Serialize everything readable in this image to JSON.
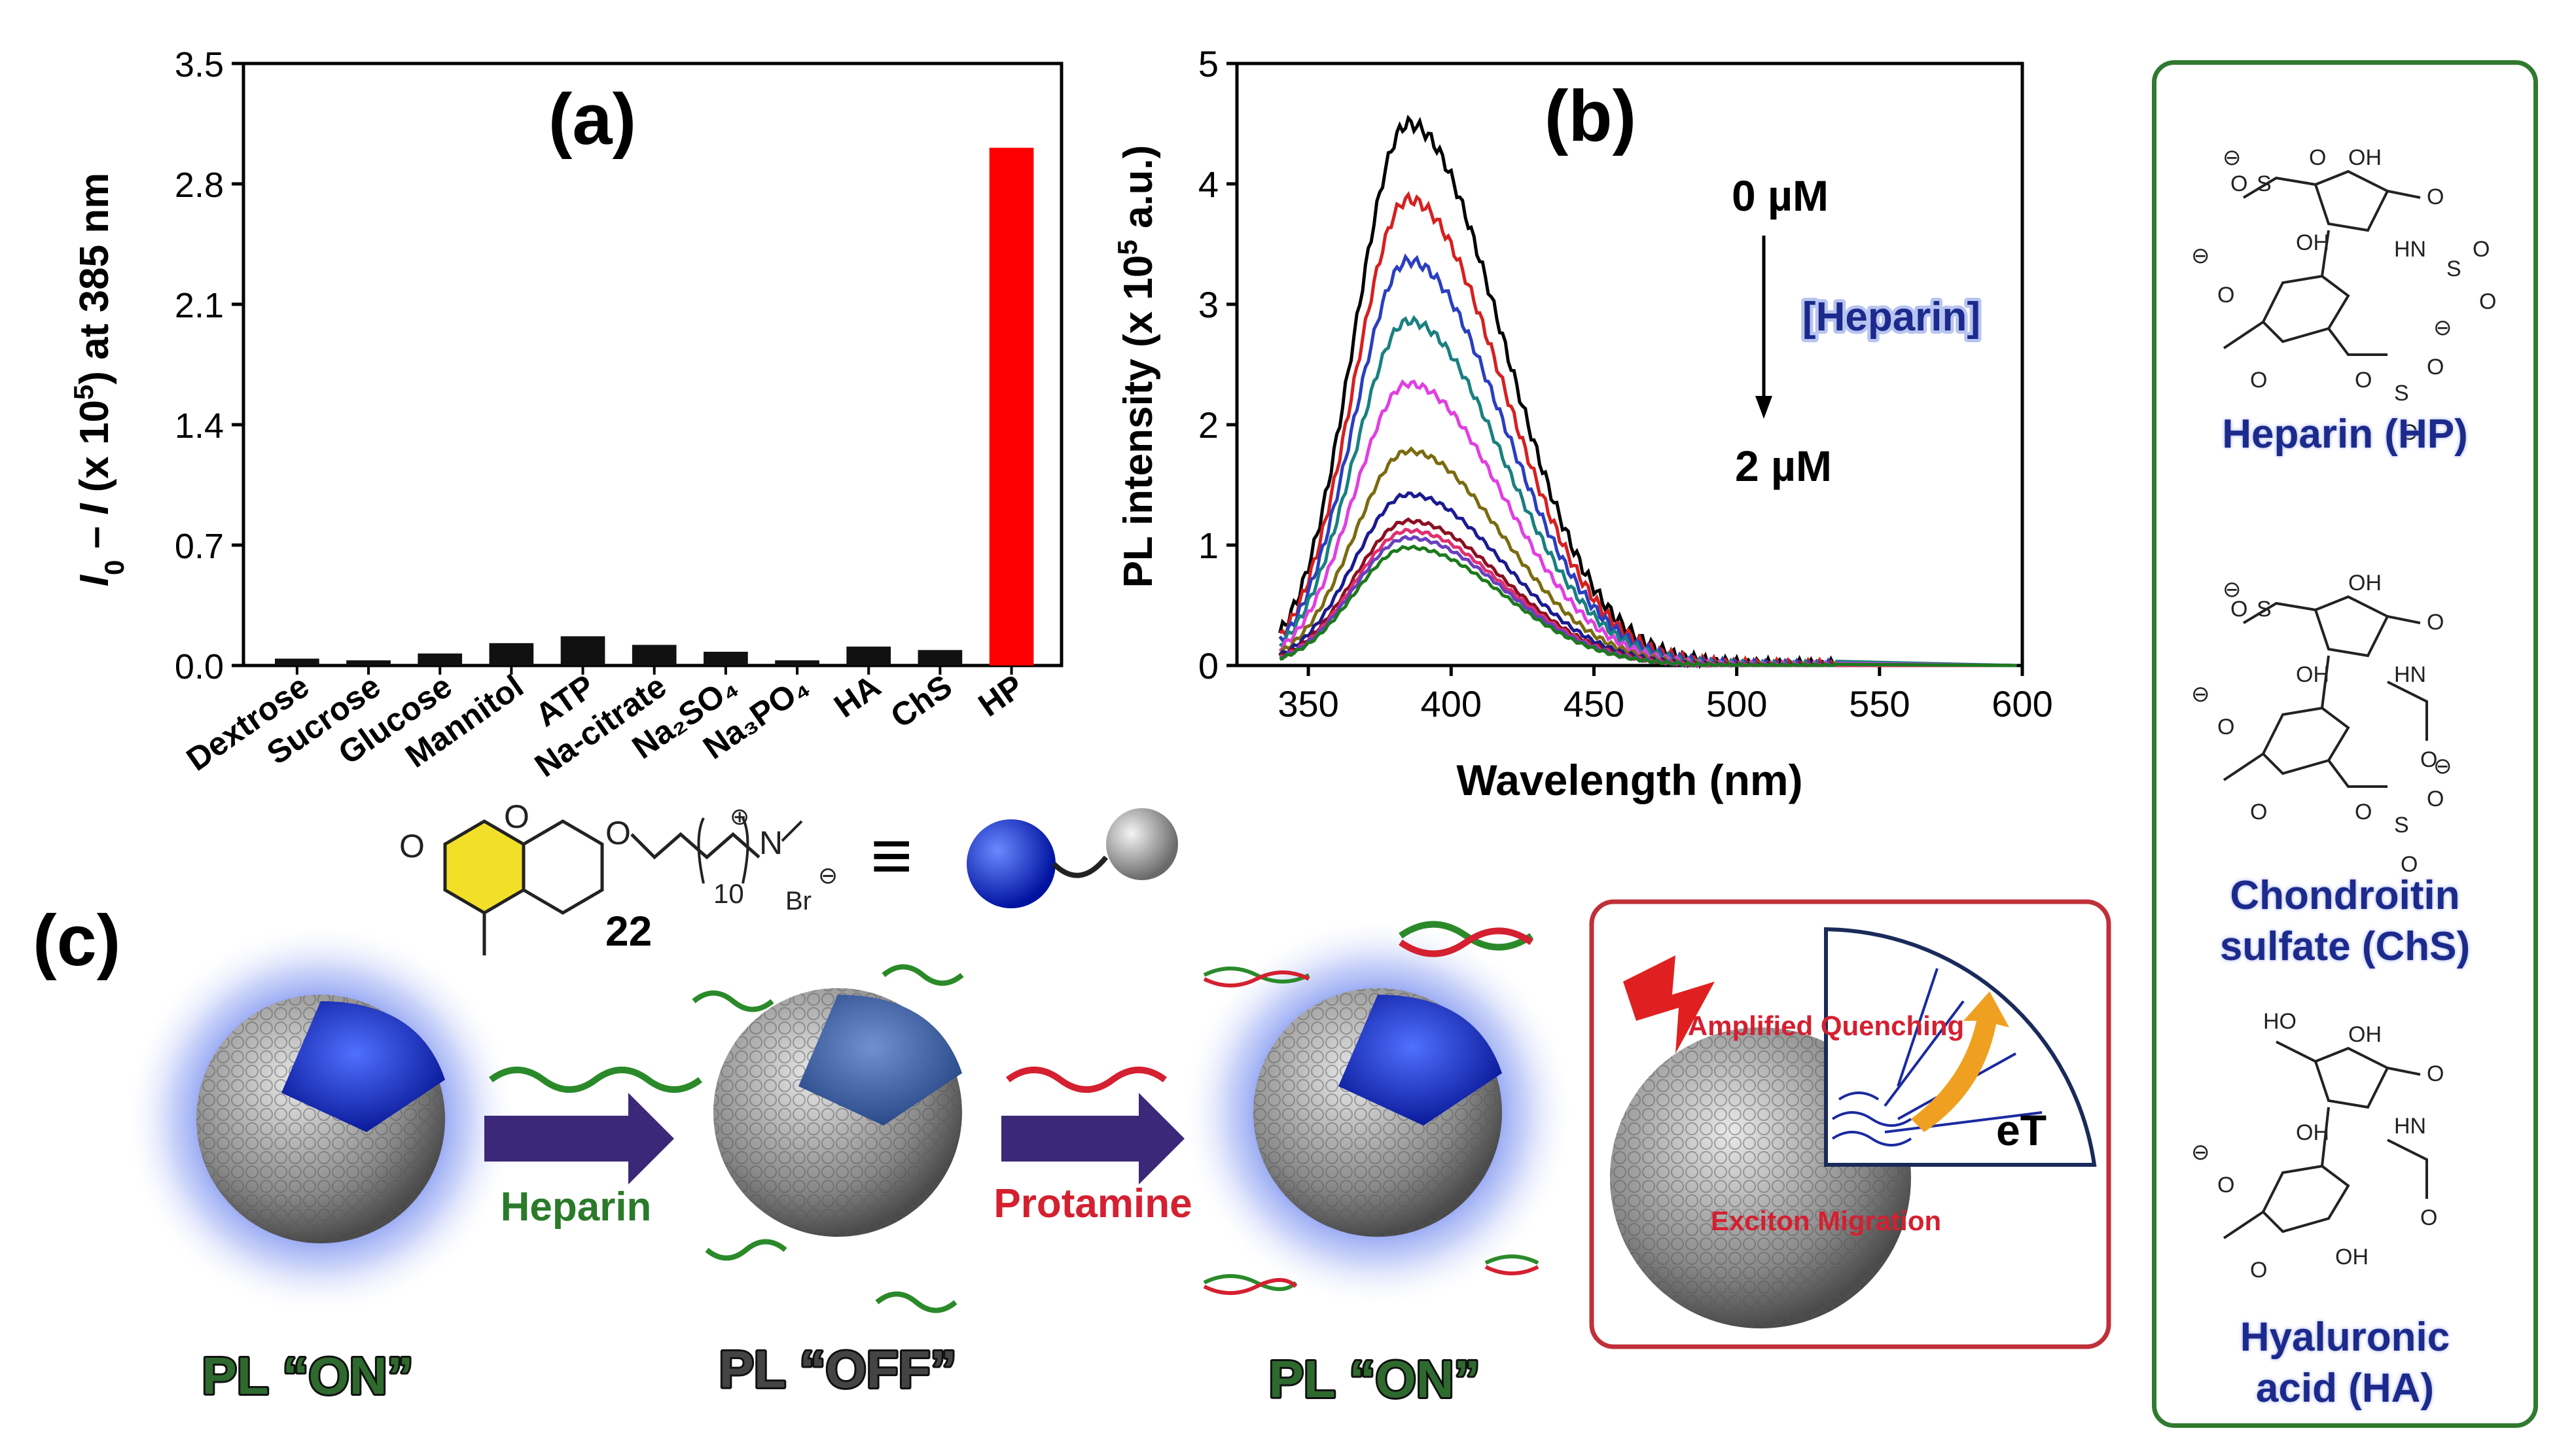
{
  "chart_data": [
    {
      "id": "a",
      "type": "bar",
      "panel_label": "(a)",
      "ylabel_html": "I₀ – I (x 10⁵) at 385 nm",
      "ylabel_parts": [
        "I",
        "0",
        " – ",
        "I",
        " (x 10",
        "5",
        ") at 385 nm"
      ],
      "ylim": [
        0,
        3.5
      ],
      "yticks": [
        "0.0",
        "0.7",
        "1.4",
        "2.1",
        "2.8",
        "3.5"
      ],
      "ytick_values": [
        0,
        0.7,
        1.4,
        2.1,
        2.8,
        3.5
      ],
      "categories": [
        "Dextrose",
        "Sucrose",
        "Glucose",
        "Mannitol",
        "ATP",
        "Na-citrate",
        "Na2SO4",
        "Na3PO4",
        "HA",
        "ChS",
        "HP"
      ],
      "category_labels": [
        "Dextrose",
        "Sucrose",
        "Glucose",
        "Mannitol",
        "ATP",
        "Na-citrate",
        "Na₂SO₄",
        "Na₃PO₄",
        "HA",
        "ChS",
        "HP"
      ],
      "values": [
        0.04,
        0.03,
        0.07,
        0.13,
        0.17,
        0.12,
        0.08,
        0.03,
        0.11,
        0.09,
        3.01
      ],
      "bar_colors": [
        "#111111",
        "#111111",
        "#111111",
        "#111111",
        "#111111",
        "#111111",
        "#111111",
        "#111111",
        "#111111",
        "#111111",
        "#ff0000"
      ]
    },
    {
      "id": "b",
      "type": "line",
      "panel_label": "(b)",
      "xlabel": "Wavelength (nm)",
      "ylabel_parts": [
        "PL intensity (x 10",
        "5",
        " a.u.)"
      ],
      "xlim": [
        325,
        600
      ],
      "ylim": [
        0,
        5
      ],
      "xticks": [
        "350",
        "400",
        "450",
        "500",
        "550",
        "600"
      ],
      "xtick_values": [
        350,
        400,
        450,
        500,
        550,
        600
      ],
      "yticks": [
        "0",
        "1",
        "2",
        "3",
        "4",
        "5"
      ],
      "ytick_values": [
        0,
        1,
        2,
        3,
        4,
        5
      ],
      "series_shape": {
        "peak_nm": 385,
        "sigma_left": 19,
        "sigma_right": 33,
        "onset_nm": 340,
        "end_nm": 535
      },
      "series": [
        {
          "name": "0 µM",
          "peak": 4.5,
          "color": "#000000"
        },
        {
          "peak": 3.87,
          "color": "#d62020"
        },
        {
          "peak": 3.36,
          "color": "#2a3fbf"
        },
        {
          "peak": 2.86,
          "color": "#1a8080"
        },
        {
          "peak": 2.34,
          "color": "#e040e0"
        },
        {
          "peak": 1.78,
          "color": "#7a6b10"
        },
        {
          "peak": 1.42,
          "color": "#1a1a90"
        },
        {
          "peak": 1.2,
          "color": "#8a1020"
        },
        {
          "peak": 1.12,
          "color": "#e03070"
        },
        {
          "peak": 1.06,
          "color": "#6a40c0"
        },
        {
          "name": "2 µM",
          "peak": 0.98,
          "color": "#1c7a1c"
        }
      ],
      "annotations": {
        "top": "0 µM",
        "arrow_label": "[Heparin]",
        "bottom": "2 µM"
      }
    }
  ],
  "panel_c": {
    "label": "(c)",
    "molecule_number": "22",
    "molecule_subscript": "10",
    "counterion": "Br",
    "equiv_symbol": "≡",
    "step1_label": "Heparin",
    "step2_label": "Protamine",
    "state_labels": [
      "PL “ON”",
      "PL “OFF”",
      "PL “ON”"
    ],
    "inset": {
      "top_label": "Amplified Quenching",
      "bottom_label": "Exciton Migration",
      "center_label": "eT"
    }
  },
  "structures": {
    "items": [
      {
        "name": "Heparin (HP)",
        "lines": [
          "Heparin (HP)"
        ]
      },
      {
        "name": "Chondroitin sulfate (ChS)",
        "lines": [
          "Chondroitin",
          "sulfate (ChS)"
        ]
      },
      {
        "name": "Hyaluronic acid (HA)",
        "lines": [
          "Hyaluronic",
          "acid (HA)"
        ]
      }
    ]
  },
  "colors": {
    "bar": "#111111",
    "highlight_bar": "#ff0000",
    "heparin_text": "#2a7a2a",
    "protamine_text": "#d42030",
    "arrow": "#3c2878",
    "navy_label": "#1c2a8c",
    "panel_border_green": "#2f7a2f",
    "inset_border_red": "#c0303a"
  }
}
